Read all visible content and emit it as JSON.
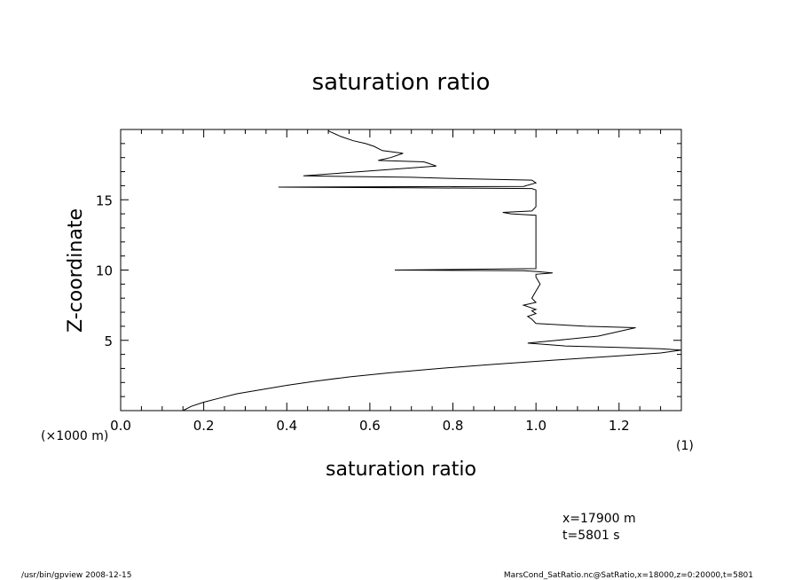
{
  "chart_data": {
    "type": "line",
    "title": "saturation ratio",
    "xlabel": "saturation ratio",
    "ylabel": "Z-coordinate",
    "xlim": [
      0.0,
      1.35
    ],
    "ylim": [
      0,
      20
    ],
    "x_ticks": [
      "0.0",
      "0.2",
      "0.4",
      "0.6",
      "0.8",
      "1.0",
      "1.2"
    ],
    "y_ticks": [
      "5",
      "10",
      "15"
    ],
    "x_unit": "(1)",
    "y_unit": "(×1000 m)",
    "grid": false,
    "series": [
      {
        "x": [
          0.15,
          0.17,
          0.2,
          0.24,
          0.28,
          0.34,
          0.4,
          0.47,
          0.55,
          0.65,
          0.77,
          0.9,
          1.05,
          1.2,
          1.3,
          1.35,
          1.3,
          1.2,
          1.07,
          0.98,
          1.05,
          1.15,
          1.24,
          1.12,
          1.0,
          0.99,
          0.98,
          1.0,
          0.99,
          1.0,
          0.98,
          0.97,
          1.0,
          0.99,
          1.0,
          1.01,
          1.0,
          1.0,
          1.04,
          1.0,
          0.97,
          0.66,
          1.0,
          1.0,
          1.0,
          1.0,
          0.94,
          0.92,
          0.99,
          1.0,
          1.0,
          1.0,
          0.99,
          0.7,
          0.38,
          0.97,
          1.0,
          0.99,
          0.82,
          0.7,
          0.44,
          0.76,
          0.74,
          0.73,
          0.62,
          0.65,
          0.68,
          0.63,
          0.61,
          0.59,
          0.56,
          0.53,
          0.5
        ],
        "y": [
          0.0,
          0.3,
          0.6,
          0.9,
          1.2,
          1.5,
          1.8,
          2.1,
          2.4,
          2.7,
          3.0,
          3.3,
          3.6,
          3.9,
          4.1,
          4.3,
          4.4,
          4.5,
          4.6,
          4.8,
          5.0,
          5.3,
          5.9,
          6.0,
          6.2,
          6.5,
          6.7,
          6.9,
          7.1,
          7.2,
          7.4,
          7.5,
          7.7,
          8.0,
          8.5,
          9.0,
          9.5,
          9.7,
          9.8,
          9.9,
          9.95,
          10.0,
          10.1,
          12.0,
          13.8,
          13.9,
          14.0,
          14.1,
          14.2,
          14.5,
          15.2,
          15.7,
          15.8,
          15.85,
          15.9,
          15.95,
          16.2,
          16.4,
          16.5,
          16.6,
          16.7,
          17.4,
          17.6,
          17.7,
          17.8,
          18.0,
          18.3,
          18.5,
          18.8,
          19.0,
          19.2,
          19.5,
          19.9
        ]
      }
    ]
  },
  "annotation": {
    "x_line": "x=17900  m",
    "t_line": "t=5801  s"
  },
  "footer": {
    "left": "/usr/bin/gpview   2008-12-15",
    "right": "MarsCond_SatRatio.nc@SatRatio,x=18000,z=0:20000,t=5801"
  }
}
